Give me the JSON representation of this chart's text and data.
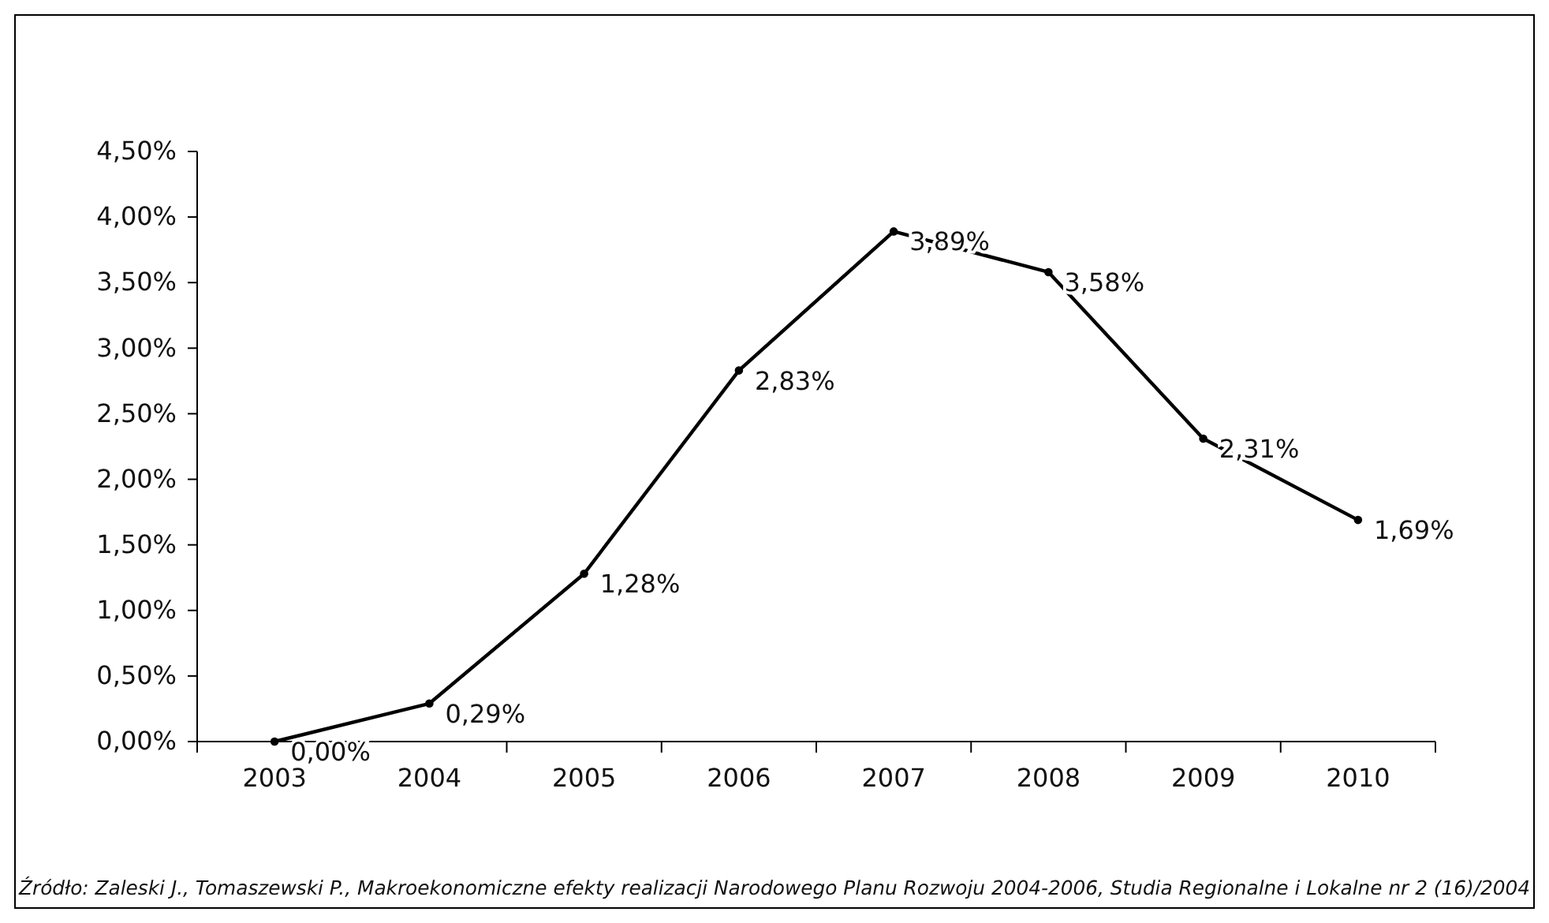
{
  "chart_data": {
    "type": "line",
    "categories": [
      "2003",
      "2004",
      "2005",
      "2006",
      "2007",
      "2008",
      "2009",
      "2010"
    ],
    "values": [
      0,
      0.29,
      1.28,
      2.83,
      3.89,
      3.58,
      2.31,
      1.69
    ],
    "value_labels": [
      "0,00%",
      "0,29%",
      "1,28%",
      "2,83%",
      "3,89%",
      "3,58%",
      "2,31%",
      "1,69%"
    ],
    "color": "#000000",
    "marker": "circle",
    "line_style": "solid",
    "ylim": [
      0,
      4.5
    ],
    "yticks": [
      {
        "value": 0,
        "label": "0,00%"
      },
      {
        "value": 0.5,
        "label": "0,50%"
      },
      {
        "value": 1,
        "label": "1,00%"
      },
      {
        "value": 1.5,
        "label": "1,50%"
      },
      {
        "value": 2,
        "label": "2,00%"
      },
      {
        "value": 2.5,
        "label": "2,50%"
      },
      {
        "value": 3,
        "label": "3,00%"
      },
      {
        "value": 3.5,
        "label": "3,50%"
      },
      {
        "value": 4,
        "label": "4,00%"
      },
      {
        "value": 4.5,
        "label": "4,50%"
      }
    ],
    "annotations": [
      "Źródło: Zaleski J., Tomaszewski P., Makroekonomiczne efekty realizacji Narodowego Planu Rozwoju 2004-2006, Studia Regionalne i Lokalne nr 2 (16)/2004"
    ]
  }
}
